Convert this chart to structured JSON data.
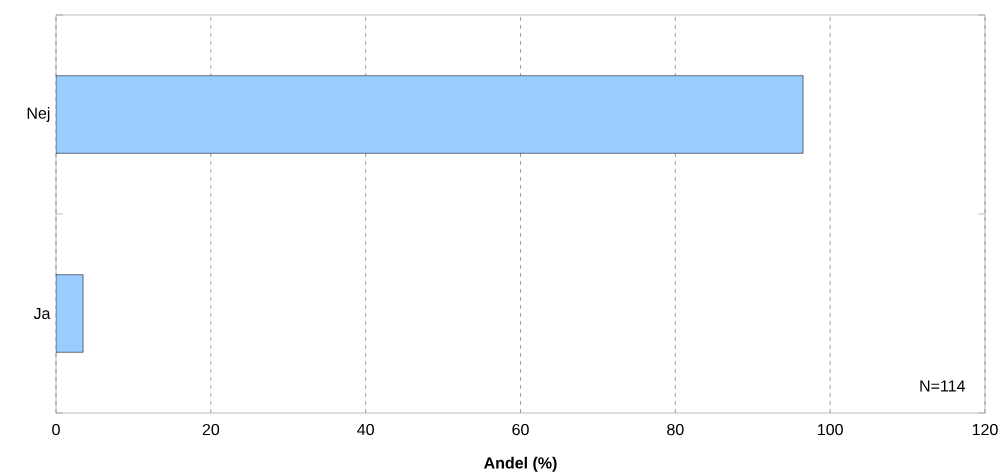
{
  "chart_data": {
    "type": "bar",
    "orientation": "horizontal",
    "categories": [
      "Nej",
      "Ja"
    ],
    "values": [
      96.5,
      3.5
    ],
    "color": "#99ccff",
    "xlim": [
      0,
      120
    ],
    "xticks": [
      0,
      20,
      40,
      60,
      80,
      100,
      120
    ],
    "xlabel": "Andel (%)",
    "grid": "x",
    "annotations": [
      "N=114"
    ]
  }
}
